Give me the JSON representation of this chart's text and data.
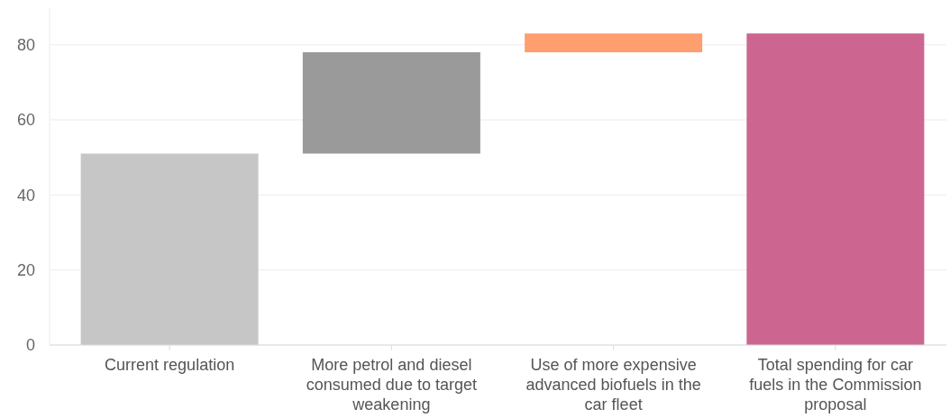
{
  "chart_data": {
    "type": "bar",
    "categories": [
      "Current regulation",
      "More petrol and diesel consumed due to target weakening",
      "Use of more expensive advanced biofuels in the car fleet",
      "Total spending for car fuels in the Commission proposal"
    ],
    "values": [
      51,
      27,
      5,
      83
    ],
    "base": [
      0,
      51,
      78,
      0
    ],
    "colors": [
      "#c6c6c6",
      "#9a9a9a",
      "#ff9e6e",
      "#cc6690"
    ],
    "ylim": [
      0,
      90
    ],
    "yticks": [
      0,
      20,
      40,
      60,
      80
    ],
    "grid": "y"
  }
}
